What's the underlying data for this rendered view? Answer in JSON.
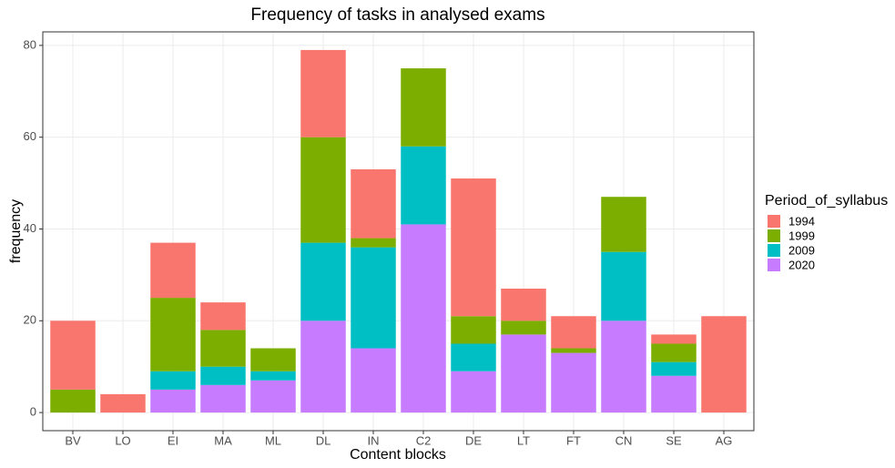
{
  "chart_data": {
    "type": "stacked_bar",
    "title": "Frequency of tasks in analysed exams",
    "x_label": "Content blocks",
    "y_label": "frequency",
    "legend_title": "Period_of_syllabus",
    "categories": [
      "BV",
      "LO",
      "EI",
      "MA",
      "ML",
      "DL",
      "IN",
      "C2",
      "DE",
      "LT",
      "FT",
      "CN",
      "SE",
      "AG"
    ],
    "series": [
      {
        "name": "2020",
        "color": "#c77cff",
        "values": [
          0,
          0,
          5,
          6,
          7,
          20,
          14,
          41,
          9,
          17,
          13,
          20,
          8,
          0
        ]
      },
      {
        "name": "2009",
        "color": "#00bfc4",
        "values": [
          0,
          0,
          4,
          4,
          2,
          17,
          22,
          17,
          6,
          0,
          0,
          15,
          3,
          0
        ]
      },
      {
        "name": "1999",
        "color": "#7cae00",
        "values": [
          5,
          0,
          16,
          8,
          5,
          23,
          2,
          17,
          6,
          3,
          1,
          12,
          4,
          0
        ]
      },
      {
        "name": "1994",
        "color": "#f8766d",
        "values": [
          15,
          4,
          12,
          6,
          0,
          19,
          15,
          0,
          30,
          7,
          7,
          0,
          2,
          21
        ]
      }
    ],
    "ylim": [
      -3.95,
      82.95
    ],
    "yticks": [
      0,
      20,
      40,
      60,
      80
    ],
    "grid": true,
    "legend": "right"
  }
}
